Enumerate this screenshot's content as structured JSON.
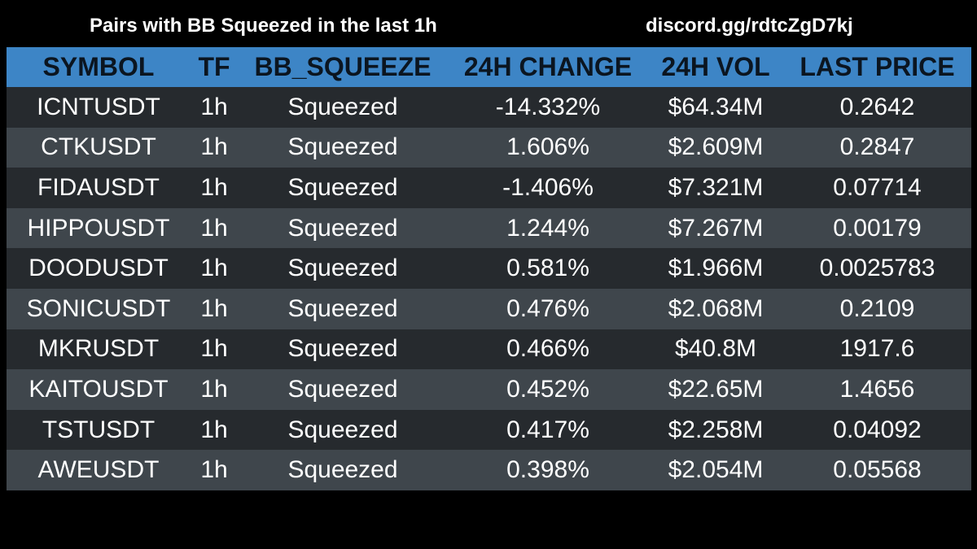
{
  "header": {
    "title": "Pairs with BB Squeezed in the last 1h",
    "discord": "discord.gg/rdtcZgD7kj"
  },
  "colors": {
    "header_bg": "#3d85c6",
    "header_text": "#0b1520",
    "row_dark": "#262a2e",
    "row_light": "#3f464c",
    "page_bg": "#000000"
  },
  "table": {
    "columns": [
      "SYMBOL",
      "TF",
      "BB_SQUEEZE",
      "24H CHANGE",
      "24H VOL",
      "LAST PRICE"
    ],
    "rows": [
      [
        "ICNTUSDT",
        "1h",
        "Squeezed",
        "-14.332%",
        "$64.34M",
        "0.2642"
      ],
      [
        "CTKUSDT",
        "1h",
        "Squeezed",
        "1.606%",
        "$2.609M",
        "0.2847"
      ],
      [
        "FIDAUSDT",
        "1h",
        "Squeezed",
        "-1.406%",
        "$7.321M",
        "0.07714"
      ],
      [
        "HIPPOUSDT",
        "1h",
        "Squeezed",
        "1.244%",
        "$7.267M",
        "0.00179"
      ],
      [
        "DOODUSDT",
        "1h",
        "Squeezed",
        "0.581%",
        "$1.966M",
        "0.0025783"
      ],
      [
        "SONICUSDT",
        "1h",
        "Squeezed",
        "0.476%",
        "$2.068M",
        "0.2109"
      ],
      [
        "MKRUSDT",
        "1h",
        "Squeezed",
        "0.466%",
        "$40.8M",
        "1917.6"
      ],
      [
        "KAITOUSDT",
        "1h",
        "Squeezed",
        "0.452%",
        "$22.65M",
        "1.4656"
      ],
      [
        "TSTUSDT",
        "1h",
        "Squeezed",
        "0.417%",
        "$2.258M",
        "0.04092"
      ],
      [
        "AWEUSDT",
        "1h",
        "Squeezed",
        "0.398%",
        "$2.054M",
        "0.05568"
      ]
    ]
  }
}
